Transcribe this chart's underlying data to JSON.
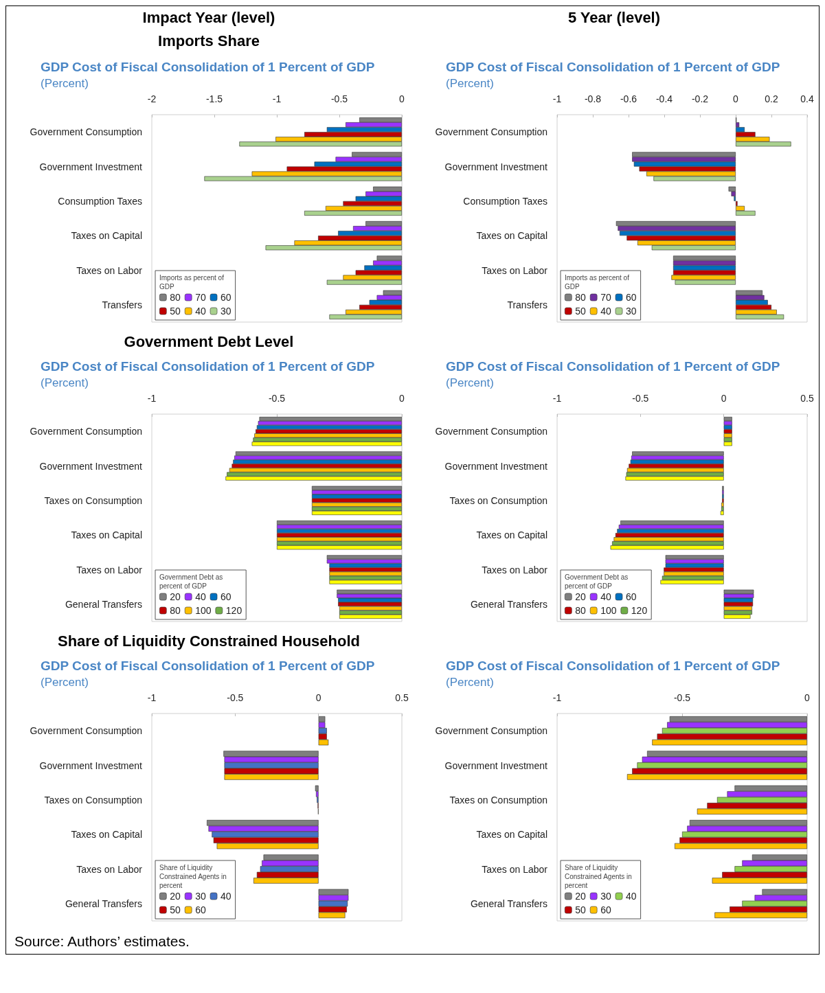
{
  "chart_data": [
    {
      "type": "bar",
      "orientation": "horizontal",
      "title": "GDP Cost of Fiscal Consolidation of 1 Percent of GDP",
      "subtitle": "(Percent)",
      "annotations": [
        "Impact Year (level)",
        "Imports Share"
      ],
      "categories": [
        "Government Consumption",
        "Government Investment",
        "Consumption Taxes",
        "Taxes on Capital",
        "Taxes on Labor",
        "Transfers"
      ],
      "xlim": [
        -2,
        0
      ],
      "xticks": [
        -2,
        -1.5,
        -1,
        -0.5,
        0
      ],
      "grid": false,
      "legend": "bottom left",
      "legend_title": "Imports as percent of GDP",
      "series": [
        {
          "name": "80",
          "color": "#7f7f7f",
          "values": [
            -0.34,
            -0.4,
            -0.23,
            -0.29,
            -0.2,
            -0.15
          ]
        },
        {
          "name": "70",
          "color": "#9933ff",
          "values": [
            -0.45,
            -0.53,
            -0.29,
            -0.39,
            -0.23,
            -0.2
          ]
        },
        {
          "name": "60",
          "color": "#0070c0",
          "values": [
            -0.6,
            -0.7,
            -0.37,
            -0.51,
            -0.3,
            -0.26
          ]
        },
        {
          "name": "50",
          "color": "#c00000",
          "values": [
            -0.78,
            -0.92,
            -0.47,
            -0.67,
            -0.37,
            -0.34
          ]
        },
        {
          "name": "40",
          "color": "#ffc000",
          "values": [
            -1.01,
            -1.2,
            -0.61,
            -0.86,
            -0.47,
            -0.45
          ]
        },
        {
          "name": "30",
          "color": "#a9d18e",
          "values": [
            -1.3,
            -1.58,
            -0.78,
            -1.09,
            -0.6,
            -0.58
          ]
        }
      ]
    },
    {
      "type": "bar",
      "orientation": "horizontal",
      "title": "GDP Cost of Fiscal Consolidation of 1 Percent of GDP",
      "subtitle": "(Percent)",
      "annotations": [
        "5 Year (level)"
      ],
      "categories": [
        "Government Consumption",
        "Government Investment",
        "Consumption Taxes",
        "Taxes on Capital",
        "Taxes on Labor",
        "Transfers"
      ],
      "xlim": [
        -1,
        0.4
      ],
      "xticks": [
        -1,
        -0.8,
        -0.6,
        -0.4,
        -0.2,
        0,
        0.2,
        0.4
      ],
      "grid": false,
      "legend": "bottom left",
      "legend_title": "Imports as percent of GDP",
      "series": [
        {
          "name": "80",
          "color": "#7f7f7f",
          "values": [
            0.005,
            -0.58,
            -0.04,
            -0.67,
            -0.35,
            0.15
          ]
        },
        {
          "name": "70",
          "color": "#7030a0",
          "values": [
            0.02,
            -0.58,
            -0.025,
            -0.66,
            -0.35,
            0.16
          ]
        },
        {
          "name": "60",
          "color": "#0070c0",
          "values": [
            0.05,
            -0.57,
            -0.01,
            -0.65,
            -0.35,
            0.18
          ]
        },
        {
          "name": "50",
          "color": "#c00000",
          "values": [
            0.11,
            -0.54,
            0.01,
            -0.61,
            -0.35,
            0.2
          ]
        },
        {
          "name": "40",
          "color": "#ffc000",
          "values": [
            0.19,
            -0.5,
            0.05,
            -0.55,
            -0.36,
            0.23
          ]
        },
        {
          "name": "30",
          "color": "#a9d18e",
          "values": [
            0.31,
            -0.46,
            0.11,
            -0.47,
            -0.34,
            0.27
          ]
        }
      ]
    },
    {
      "type": "bar",
      "orientation": "horizontal",
      "title": "GDP Cost of Fiscal Consolidation of 1 Percent of GDP",
      "subtitle": "(Percent)",
      "annotations": [
        "Government Debt Level"
      ],
      "categories": [
        "Government Consumption",
        "Government Investment",
        "Taxes on Consumption",
        "Taxes on Capital",
        "Taxes on Labor",
        "General Transfers"
      ],
      "xlim": [
        -1,
        0
      ],
      "xticks": [
        -1,
        -0.5,
        0
      ],
      "grid": false,
      "legend": "bottom left",
      "legend_title": "Government Debt as percent of GDP",
      "series": [
        {
          "name": "20",
          "color": "#7f7f7f",
          "values": [
            -0.57,
            -0.665,
            -0.36,
            -0.5,
            -0.3,
            -0.26
          ]
        },
        {
          "name": "40",
          "color": "#9933ff",
          "values": [
            -0.575,
            -0.67,
            -0.36,
            -0.5,
            -0.3,
            -0.26
          ]
        },
        {
          "name": "60",
          "color": "#0070c0",
          "values": [
            -0.58,
            -0.675,
            -0.36,
            -0.5,
            -0.29,
            -0.255
          ]
        },
        {
          "name": "80",
          "color": "#c00000",
          "values": [
            -0.585,
            -0.68,
            -0.36,
            -0.5,
            -0.29,
            -0.255
          ]
        },
        {
          "name": "100",
          "color": "#ffc000",
          "values": [
            -0.59,
            -0.69,
            -0.36,
            -0.5,
            -0.29,
            -0.25
          ]
        },
        {
          "name": "120",
          "color": "#70ad47",
          "values": [
            -0.595,
            -0.7,
            -0.36,
            -0.5,
            -0.29,
            -0.25
          ]
        },
        {
          "color": "#ffff00",
          "values": [
            -0.6,
            -0.705,
            -0.36,
            -0.5,
            -0.29,
            -0.25
          ]
        }
      ]
    },
    {
      "type": "bar",
      "orientation": "horizontal",
      "title": "GDP Cost of Fiscal Consolidation of 1 Percent of GDP",
      "subtitle": "(Percent)",
      "categories": [
        "Government Consumption",
        "Government Investment",
        "Taxes on Consumption",
        "Taxes on Capital",
        "Taxes on Labor",
        "General Transfers"
      ],
      "xlim": [
        -1,
        0.5
      ],
      "xticks": [
        -1,
        -0.5,
        0,
        0.5
      ],
      "grid": false,
      "legend": "bottom left",
      "legend_title": "Government Debt as percent of GDP",
      "series": [
        {
          "name": "20",
          "color": "#7f7f7f",
          "values": [
            0.05,
            -0.55,
            -0.01,
            -0.62,
            -0.35,
            0.18
          ]
        },
        {
          "name": "40",
          "color": "#9933ff",
          "values": [
            0.05,
            -0.555,
            -0.01,
            -0.63,
            -0.35,
            0.18
          ]
        },
        {
          "name": "60",
          "color": "#0070c0",
          "values": [
            0.05,
            -0.56,
            -0.01,
            -0.64,
            -0.35,
            0.175
          ]
        },
        {
          "name": "80",
          "color": "#c00000",
          "values": [
            0.05,
            -0.57,
            -0.01,
            -0.65,
            -0.36,
            0.175
          ]
        },
        {
          "name": "100",
          "color": "#ffc000",
          "values": [
            0.05,
            -0.58,
            -0.015,
            -0.66,
            -0.36,
            0.17
          ]
        },
        {
          "name": "120",
          "color": "#70ad47",
          "values": [
            0.05,
            -0.585,
            -0.015,
            -0.67,
            -0.37,
            0.17
          ]
        },
        {
          "color": "#ffff00",
          "values": [
            0.05,
            -0.59,
            -0.02,
            -0.68,
            -0.38,
            0.16
          ]
        }
      ]
    },
    {
      "type": "bar",
      "orientation": "horizontal",
      "title": "GDP Cost of Fiscal Consolidation of 1 Percent of GDP",
      "subtitle": "(Percent)",
      "annotations": [
        "Share of Liquidity Constrained Household"
      ],
      "categories": [
        "Government Consumption",
        "Government Investment",
        "Taxes on Consumption",
        "Taxes on Capital",
        "Taxes on Labor",
        "General Transfers"
      ],
      "xlim": [
        -1,
        0.5
      ],
      "xticks": [
        -1,
        -0.5,
        0,
        0.5
      ],
      "grid": false,
      "legend": "bottom left",
      "legend_title": "Share of Liquidity Constrained Agents in percent",
      "series": [
        {
          "name": "20",
          "color": "#7f7f7f",
          "values": [
            0.04,
            -0.57,
            -0.02,
            -0.67,
            -0.33,
            0.18
          ]
        },
        {
          "name": "30",
          "color": "#9933ff",
          "values": [
            0.04,
            -0.565,
            -0.015,
            -0.66,
            -0.34,
            0.18
          ]
        },
        {
          "name": "40",
          "color": "#4472c4",
          "values": [
            0.05,
            -0.565,
            -0.01,
            -0.64,
            -0.35,
            0.175
          ]
        },
        {
          "name": "50",
          "color": "#c00000",
          "values": [
            0.05,
            -0.565,
            -0.005,
            -0.63,
            -0.37,
            0.17
          ]
        },
        {
          "name": "60",
          "color": "#ffc000",
          "values": [
            0.06,
            -0.565,
            -0.003,
            -0.61,
            -0.39,
            0.16
          ]
        }
      ]
    },
    {
      "type": "bar",
      "orientation": "horizontal",
      "title": "GDP Cost of Fiscal Consolidation of 1 Percent of GDP",
      "subtitle": "(Percent)",
      "annotations": [
        "Source: Authors’ estimates."
      ],
      "categories": [
        "Government Consumption",
        "Government Investment",
        "Taxes on Consumption",
        "Taxes on Capital",
        "Taxes on Labor",
        "General Transfers"
      ],
      "xlim": [
        -1,
        0
      ],
      "xticks": [
        -1,
        -0.5,
        0
      ],
      "grid": false,
      "legend": "bottom left",
      "legend_title": "Share of Liquidity Constrained Agents in percent",
      "series": [
        {
          "name": "20",
          "color": "#7f7f7f",
          "values": [
            -0.55,
            -0.64,
            -0.29,
            -0.47,
            -0.22,
            -0.18
          ]
        },
        {
          "name": "30",
          "color": "#9933ff",
          "values": [
            -0.56,
            -0.66,
            -0.32,
            -0.48,
            -0.26,
            -0.21
          ]
        },
        {
          "name": "40",
          "color": "#92d050",
          "values": [
            -0.58,
            -0.68,
            -0.36,
            -0.5,
            -0.29,
            -0.26
          ]
        },
        {
          "name": "50",
          "color": "#c00000",
          "values": [
            -0.6,
            -0.7,
            -0.4,
            -0.51,
            -0.34,
            -0.31
          ]
        },
        {
          "name": "60",
          "color": "#ffc000",
          "values": [
            -0.62,
            -0.72,
            -0.44,
            -0.53,
            -0.38,
            -0.37
          ]
        }
      ]
    }
  ]
}
